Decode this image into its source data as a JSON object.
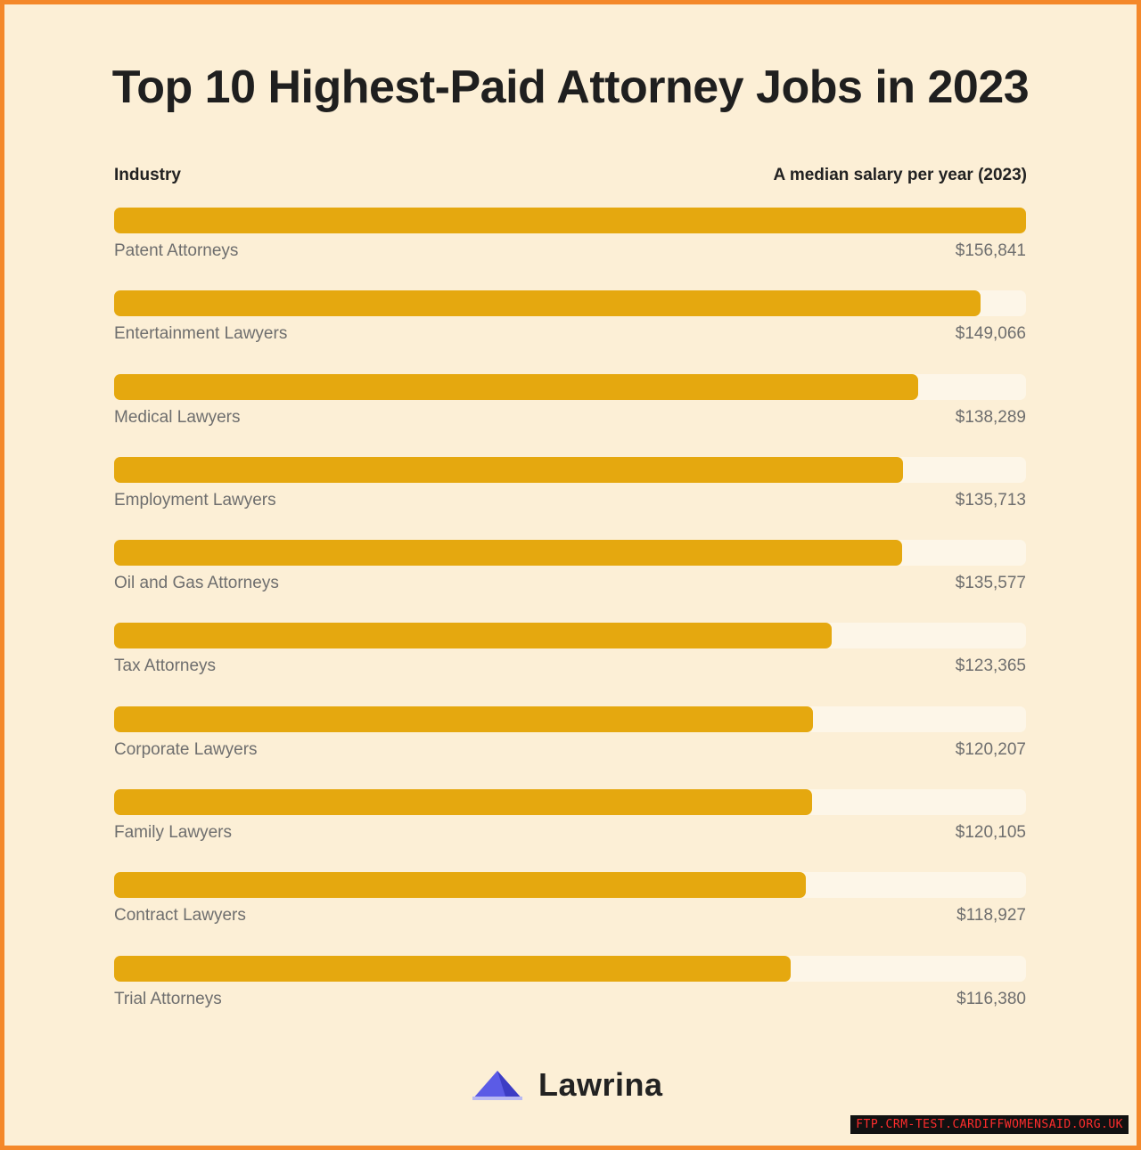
{
  "title": "Top 10 Highest-Paid Attorney Jobs in 2023",
  "headers": {
    "left": "Industry",
    "right": "A median salary per year (2023)"
  },
  "chart_data": {
    "type": "bar",
    "orientation": "horizontal",
    "title": "Top 10 Highest-Paid Attorney Jobs in 2023",
    "xlabel": "A median salary per year (2023)",
    "ylabel": "Industry",
    "xlim": [
      0,
      156841
    ],
    "categories": [
      "Patent Attorneys",
      "Entertainment Lawyers",
      "Medical Lawyers",
      "Employment Lawyers",
      "Oil and Gas Attorneys",
      "Tax Attorneys",
      "Corporate Lawyers",
      "Family Lawyers",
      "Contract Lawyers",
      "Trial Attorneys"
    ],
    "values": [
      156841,
      149066,
      138289,
      135713,
      135577,
      123365,
      120207,
      120105,
      118927,
      116380
    ],
    "value_labels": [
      "$156,841",
      "$149,066",
      "$138,289",
      "$135,713",
      "$135,577",
      "$123,365",
      "$120,207",
      "$120,105",
      "$118,927",
      "$116,380"
    ],
    "bar_color": "#e5a80f",
    "track_color": "#fdf6e8",
    "grid": false
  },
  "logo": {
    "text": "Lawrina",
    "icon": "lawrina-logo-icon",
    "color": "#5b5be6"
  },
  "watermark": "FTP.CRM-TEST.CARDIFFWOMENSAID.ORG.UK"
}
